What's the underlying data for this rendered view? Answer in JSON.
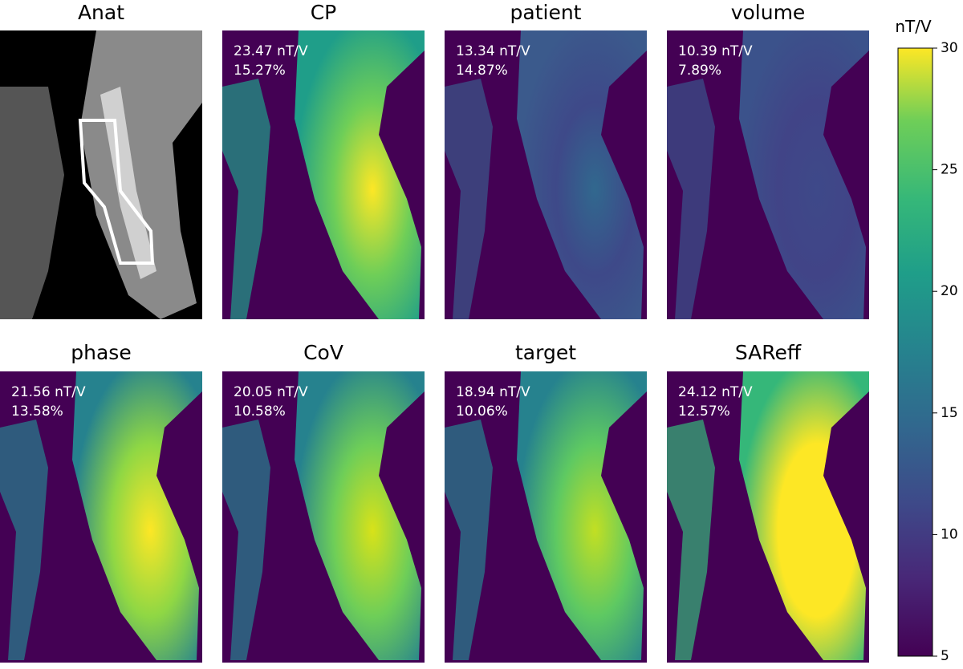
{
  "panels": [
    {
      "title": "Anat",
      "lines": []
    },
    {
      "title": "CP",
      "lines": [
        "23.47 nT/V",
        "15.27%"
      ]
    },
    {
      "title": "patient",
      "lines": [
        "13.34 nT/V",
        "14.87%"
      ]
    },
    {
      "title": "volume",
      "lines": [
        "10.39 nT/V",
        "7.89%"
      ]
    },
    {
      "title": "phase",
      "lines": [
        "21.56 nT/V",
        "13.58%"
      ]
    },
    {
      "title": "CoV",
      "lines": [
        "20.05 nT/V",
        "10.58%"
      ]
    },
    {
      "title": "target",
      "lines": [
        "18.94 nT/V",
        "10.06%"
      ]
    },
    {
      "title": "SAReff",
      "lines": [
        "24.12 nT/V",
        "12.57%"
      ]
    }
  ],
  "colorbar": {
    "label": "nT/V",
    "lim": [
      5,
      30
    ],
    "ticks": [
      5,
      10,
      15,
      20,
      25,
      30
    ]
  }
}
